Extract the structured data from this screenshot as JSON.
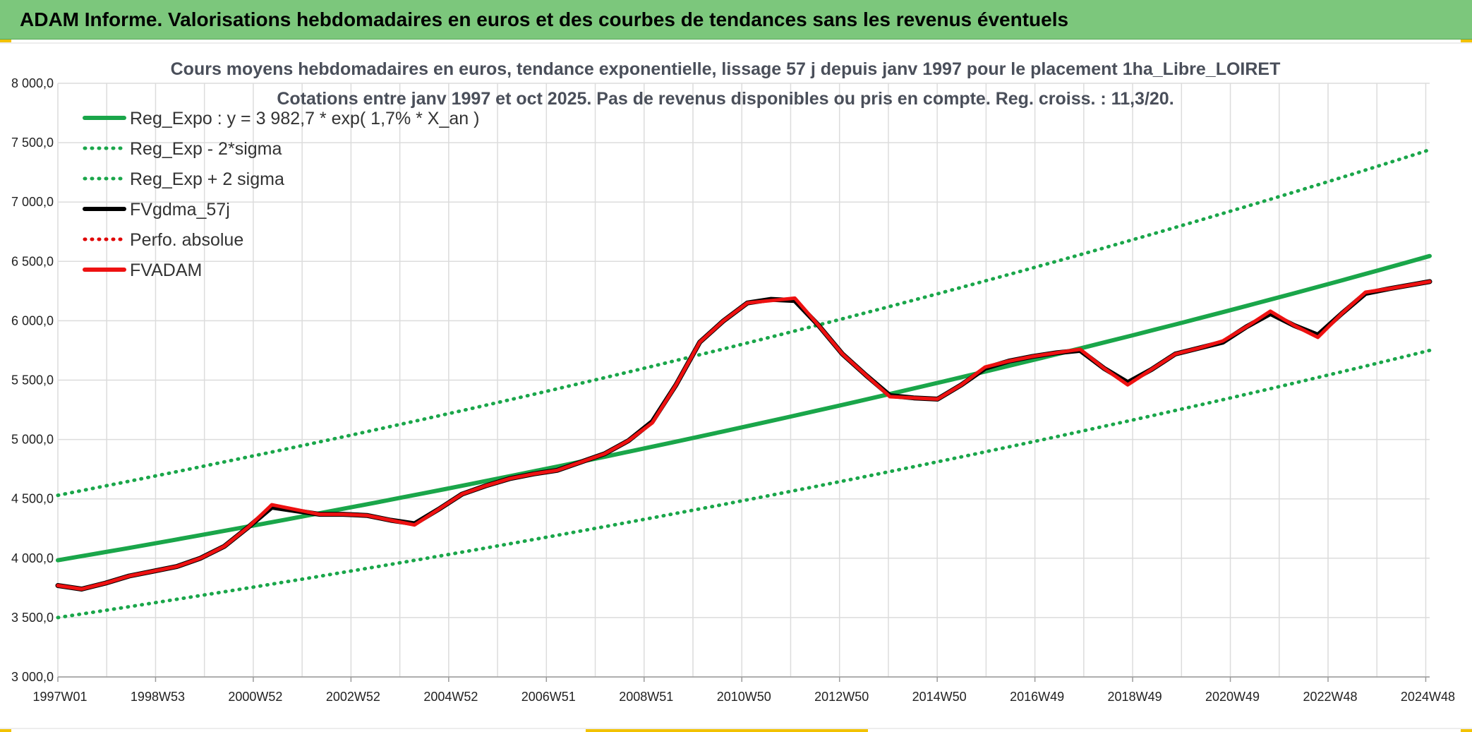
{
  "header": {
    "title": "ADAM Informe. Valorisations hebdomadaires en euros et des courbes de tendances sans les revenus éventuels"
  },
  "colors": {
    "header_bg": "#7cc77c",
    "reg_expo": "#1aa64a",
    "reg_band": "#1aa64a",
    "fvgdma": "#000000",
    "perfo": "#e00000",
    "fvadam": "#ee1111",
    "grid": "#dcdcdc"
  },
  "chart_data": {
    "type": "line",
    "title": "Cours moyens hebdomadaires en euros, tendance exponentielle, lissage 57 j depuis janv 1997 pour le placement 1ha_Libre_LOIRET",
    "subtitle": "Cotations entre janv 1997 et oct 2025. Pas de revenus disponibles ou pris en compte. Reg. croiss. : 11,3/20.",
    "xlabel": "",
    "ylabel": "",
    "x_ticks": [
      "1997W01",
      "1998W53",
      "2000W52",
      "2002W52",
      "2004W52",
      "2006W51",
      "2008W51",
      "2010W50",
      "2012W50",
      "2014W50",
      "2016W49",
      "2018W49",
      "2020W49",
      "2022W48",
      "2024W48"
    ],
    "y_ticks": [
      "3 000,0",
      "3 500,0",
      "4 000,0",
      "4 500,0",
      "5 000,0",
      "5 500,0",
      "6 000,0",
      "6 500,0",
      "7 000,0",
      "7 500,0",
      "8 000,0"
    ],
    "ylim": [
      3000,
      8000
    ],
    "xlim": [
      1997.0,
      2025.85
    ],
    "grid": true,
    "legend_position": "top-left",
    "legend": [
      {
        "name": "Reg_Expo : y = 3 982,7 * exp( 1,7% *  X_an )",
        "style": "solid-thick",
        "color": "#1aa64a"
      },
      {
        "name": "Reg_Exp - 2*sigma",
        "style": "dotted",
        "color": "#1aa64a"
      },
      {
        "name": "Reg_Exp + 2 sigma",
        "style": "dotted",
        "color": "#1aa64a"
      },
      {
        "name": "FVgdma_57j",
        "style": "solid",
        "color": "#000000"
      },
      {
        "name": "Perfo. absolue",
        "style": "dotted",
        "color": "#e00000"
      },
      {
        "name": "FVADAM",
        "style": "solid-thick",
        "color": "#ee1111"
      }
    ],
    "series": [
      {
        "name": "Reg_Expo : y = 3 982,7 * exp( 1,7% *  X_an )",
        "x": [
          1997.0,
          2025.85
        ],
        "y": [
          3982.7,
          6545
        ]
      },
      {
        "name": "Reg_Exp - 2*sigma",
        "x": [
          1997.0,
          2025.85
        ],
        "y": [
          3500,
          5750
        ]
      },
      {
        "name": "Reg_Exp + 2 sigma",
        "x": [
          1997.0,
          2025.85
        ],
        "y": [
          4530,
          7440
        ]
      },
      {
        "name": "FVgdma_57j",
        "x": [
          1997.0,
          1997.5,
          1998.0,
          1998.5,
          1999.0,
          1999.5,
          2000.0,
          2000.5,
          2001.0,
          2001.5,
          2002.0,
          2002.5,
          2003.0,
          2003.5,
          2004.0,
          2004.5,
          2005.0,
          2005.5,
          2006.0,
          2006.5,
          2007.0,
          2007.5,
          2008.0,
          2008.5,
          2009.0,
          2009.5,
          2010.0,
          2010.5,
          2011.0,
          2011.5,
          2012.0,
          2012.5,
          2013.0,
          2013.5,
          2014.0,
          2014.5,
          2015.0,
          2015.5,
          2016.0,
          2016.5,
          2017.0,
          2017.5,
          2018.0,
          2018.5,
          2019.0,
          2019.5,
          2020.0,
          2020.5,
          2021.0,
          2021.5,
          2022.0,
          2022.5,
          2023.0,
          2023.5,
          2024.0,
          2024.5,
          2025.0,
          2025.85
        ],
        "y": [
          3770,
          3740,
          3790,
          3850,
          3890,
          3930,
          4000,
          4100,
          4260,
          4430,
          4400,
          4370,
          4370,
          4360,
          4320,
          4290,
          4410,
          4540,
          4610,
          4670,
          4710,
          4740,
          4810,
          4880,
          4990,
          5150,
          5460,
          5820,
          6000,
          6150,
          6180,
          6170,
          5960,
          5720,
          5540,
          5370,
          5350,
          5340,
          5460,
          5600,
          5660,
          5700,
          5730,
          5750,
          5600,
          5480,
          5590,
          5720,
          5770,
          5820,
          5950,
          6060,
          5960,
          5880,
          6060,
          6230,
          6270,
          6330
        ]
      },
      {
        "name": "Perfo. absolue",
        "x": [
          1997.0,
          1997.5,
          1998.0,
          1998.5,
          1999.0,
          1999.5,
          2000.0,
          2000.5,
          2001.0,
          2001.5,
          2002.0,
          2002.5,
          2003.0,
          2003.5,
          2004.0,
          2004.5,
          2005.0,
          2005.5,
          2006.0,
          2006.5,
          2007.0,
          2007.5,
          2008.0,
          2008.5,
          2009.0,
          2009.5,
          2010.0,
          2010.5,
          2011.0,
          2011.5,
          2012.0,
          2012.5,
          2013.0,
          2013.5,
          2014.0,
          2014.5,
          2015.0,
          2015.5,
          2016.0,
          2016.5,
          2017.0,
          2017.5,
          2018.0,
          2018.5,
          2019.0,
          2019.5,
          2020.0,
          2020.5,
          2021.0,
          2021.5,
          2022.0,
          2022.5,
          2023.0,
          2023.5,
          2024.0,
          2024.5,
          2025.0,
          2025.85
        ],
        "y": [
          3770,
          3740,
          3790,
          3850,
          3890,
          3930,
          4000,
          4100,
          4260,
          4450,
          4410,
          4370,
          4370,
          4360,
          4320,
          4280,
          4410,
          4540,
          4610,
          4670,
          4710,
          4740,
          4810,
          4880,
          4990,
          5140,
          5460,
          5820,
          6000,
          6150,
          6170,
          6190,
          5960,
          5720,
          5540,
          5360,
          5350,
          5340,
          5460,
          5610,
          5660,
          5700,
          5730,
          5760,
          5600,
          5460,
          5590,
          5720,
          5770,
          5830,
          5950,
          6080,
          5960,
          5860,
          6060,
          6240,
          6270,
          6330
        ]
      },
      {
        "name": "FVADAM",
        "x": [
          1997.0,
          1997.5,
          1998.0,
          1998.5,
          1999.0,
          1999.5,
          2000.0,
          2000.5,
          2001.0,
          2001.5,
          2002.0,
          2002.5,
          2003.0,
          2003.5,
          2004.0,
          2004.5,
          2005.0,
          2005.5,
          2006.0,
          2006.5,
          2007.0,
          2007.5,
          2008.0,
          2008.5,
          2009.0,
          2009.5,
          2010.0,
          2010.5,
          2011.0,
          2011.5,
          2012.0,
          2012.5,
          2013.0,
          2013.5,
          2014.0,
          2014.5,
          2015.0,
          2015.5,
          2016.0,
          2016.5,
          2017.0,
          2017.5,
          2018.0,
          2018.5,
          2019.0,
          2019.5,
          2020.0,
          2020.5,
          2021.0,
          2021.5,
          2022.0,
          2022.5,
          2023.0,
          2023.5,
          2024.0,
          2024.5,
          2025.0,
          2025.85
        ],
        "y": [
          3770,
          3740,
          3790,
          3850,
          3890,
          3930,
          4000,
          4100,
          4260,
          4450,
          4410,
          4370,
          4370,
          4360,
          4320,
          4280,
          4410,
          4540,
          4610,
          4670,
          4710,
          4740,
          4810,
          4880,
          4990,
          5140,
          5460,
          5820,
          6000,
          6150,
          6170,
          6190,
          5960,
          5720,
          5540,
          5360,
          5350,
          5340,
          5460,
          5610,
          5660,
          5700,
          5730,
          5760,
          5600,
          5460,
          5590,
          5720,
          5770,
          5830,
          5950,
          6080,
          5960,
          5860,
          6060,
          6240,
          6270,
          6330
        ]
      }
    ]
  }
}
